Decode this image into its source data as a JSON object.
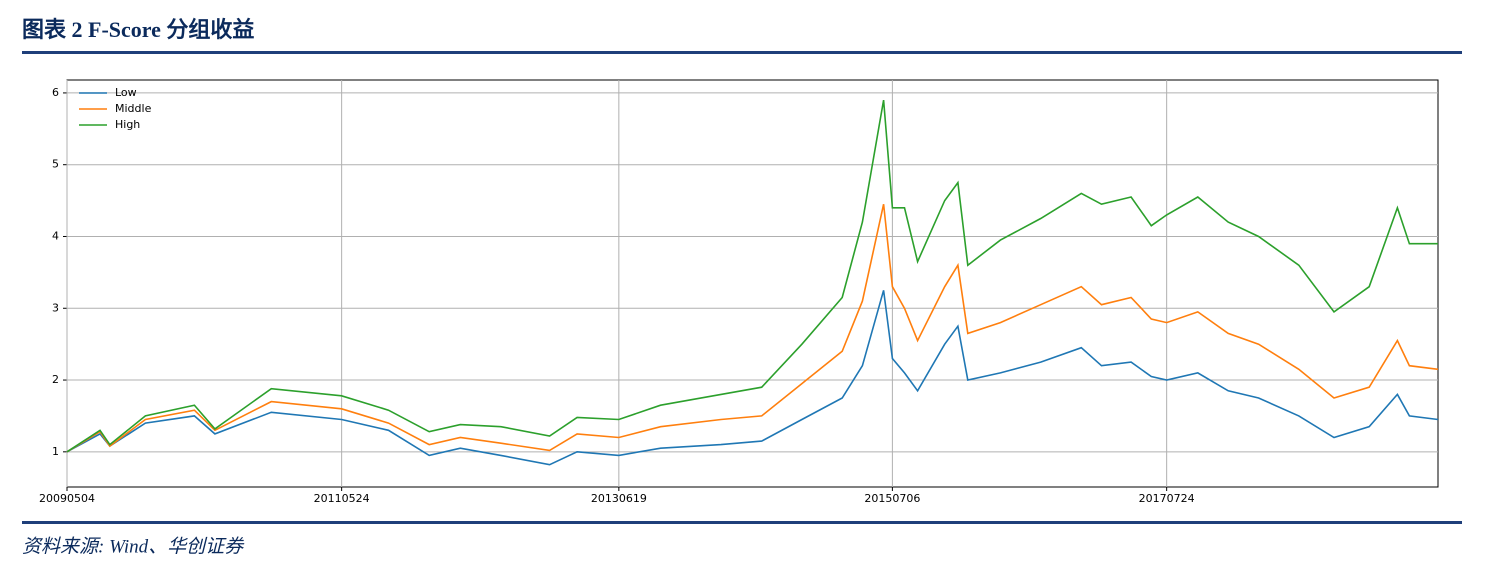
{
  "chart_data": {
    "type": "line",
    "title": "图表 2   F-Score 分组收益",
    "source": "资料来源: Wind、华创证券",
    "x": [
      "20090504",
      "20090802",
      "20090829",
      "20091204",
      "20100417",
      "20100612",
      "20101113",
      "20110524",
      "20110929",
      "20120118",
      "20120412",
      "20120801",
      "20121212",
      "20130225",
      "20130619",
      "20131011",
      "20140325",
      "20140714",
      "20141101",
      "20150219",
      "20150415",
      "20150612",
      "20150706",
      "20150808",
      "20150913",
      "20151126",
      "20160101",
      "20160128",
      "20160426",
      "20160814",
      "20161203",
      "20170127",
      "20170418",
      "20170612",
      "20170724",
      "20171017",
      "20180108",
      "20180401",
      "20180720",
      "20181024",
      "20190128",
      "20190415",
      "20190518",
      "20190804"
    ],
    "series": [
      {
        "name": "Low",
        "color": "#1f77b4",
        "values": [
          1.0,
          1.25,
          1.08,
          1.4,
          1.5,
          1.25,
          1.55,
          1.45,
          1.3,
          0.95,
          1.05,
          0.95,
          0.82,
          1.0,
          0.95,
          1.05,
          1.1,
          1.15,
          1.45,
          1.75,
          2.2,
          3.25,
          2.3,
          2.1,
          1.85,
          2.5,
          2.75,
          2.0,
          2.1,
          2.25,
          2.45,
          2.2,
          2.25,
          2.05,
          2.0,
          2.1,
          1.85,
          1.75,
          1.5,
          1.2,
          1.35,
          1.8,
          1.5,
          1.45
        ]
      },
      {
        "name": "Middle",
        "color": "#ff7f0e",
        "values": [
          1.0,
          1.28,
          1.08,
          1.45,
          1.58,
          1.3,
          1.7,
          1.6,
          1.4,
          1.1,
          1.2,
          1.12,
          1.02,
          1.25,
          1.2,
          1.35,
          1.45,
          1.5,
          1.95,
          2.4,
          3.1,
          4.45,
          3.3,
          3.0,
          2.55,
          3.3,
          3.6,
          2.65,
          2.8,
          3.05,
          3.3,
          3.05,
          3.15,
          2.85,
          2.8,
          2.95,
          2.65,
          2.5,
          2.15,
          1.75,
          1.9,
          2.55,
          2.2,
          2.15
        ]
      },
      {
        "name": "High",
        "color": "#2ca02c",
        "values": [
          1.0,
          1.3,
          1.1,
          1.5,
          1.65,
          1.32,
          1.88,
          1.78,
          1.58,
          1.28,
          1.38,
          1.35,
          1.22,
          1.48,
          1.45,
          1.65,
          1.8,
          1.9,
          2.5,
          3.15,
          4.2,
          5.9,
          4.4,
          4.4,
          3.65,
          4.5,
          4.75,
          3.6,
          3.95,
          4.25,
          4.6,
          4.45,
          4.55,
          4.15,
          4.3,
          4.55,
          4.2,
          4.0,
          3.6,
          2.95,
          3.3,
          4.4,
          3.9,
          3.9
        ]
      }
    ],
    "xlim": [
      "20090504",
      "20190804"
    ],
    "xticks": [
      "20090504",
      "20110524",
      "20130619",
      "20150706",
      "20170724"
    ],
    "ylim": [
      0.51,
      6.18
    ],
    "yticks": [
      1,
      2,
      3,
      4,
      5,
      6
    ],
    "grid": true,
    "legend": "upper left"
  }
}
